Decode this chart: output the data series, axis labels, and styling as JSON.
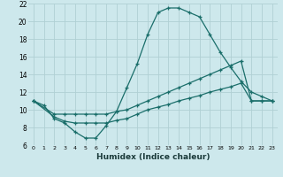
{
  "xlabel": "Humidex (Indice chaleur)",
  "background_color": "#cde8ec",
  "grid_color": "#b0d0d4",
  "line_color": "#1a6e6a",
  "xlim": [
    -0.5,
    23.5
  ],
  "ylim": [
    6,
    22
  ],
  "xticks": [
    0,
    1,
    2,
    3,
    4,
    5,
    6,
    7,
    8,
    9,
    10,
    11,
    12,
    13,
    14,
    15,
    16,
    17,
    18,
    19,
    20,
    21,
    22,
    23
  ],
  "yticks": [
    6,
    8,
    10,
    12,
    14,
    16,
    18,
    20,
    22
  ],
  "line1_x": [
    0,
    1,
    2,
    3,
    4,
    5,
    6,
    7,
    8,
    9,
    10,
    11,
    12,
    13,
    14,
    15,
    16,
    17,
    18,
    19,
    20,
    21,
    22,
    23
  ],
  "line1_y": [
    11.0,
    10.5,
    9.0,
    8.5,
    7.5,
    6.8,
    6.8,
    8.2,
    9.8,
    12.5,
    15.2,
    18.5,
    21.0,
    21.5,
    21.5,
    21.0,
    20.5,
    18.5,
    16.5,
    14.8,
    13.2,
    12.0,
    11.5,
    11.0
  ],
  "line2_x": [
    0,
    2,
    3,
    4,
    5,
    6,
    7,
    8,
    9,
    10,
    11,
    12,
    13,
    14,
    15,
    16,
    17,
    18,
    19,
    20,
    21,
    22,
    23
  ],
  "line2_y": [
    11.0,
    9.5,
    9.5,
    9.5,
    9.5,
    9.5,
    9.5,
    9.8,
    10.0,
    10.5,
    11.0,
    11.5,
    12.0,
    12.5,
    13.0,
    13.5,
    14.0,
    14.5,
    15.0,
    15.5,
    11.0,
    11.0,
    11.0
  ],
  "line3_x": [
    0,
    2,
    3,
    4,
    5,
    6,
    7,
    8,
    9,
    10,
    11,
    12,
    13,
    14,
    15,
    16,
    17,
    18,
    19,
    20,
    21,
    22,
    23
  ],
  "line3_y": [
    11.0,
    9.2,
    8.7,
    8.5,
    8.5,
    8.5,
    8.5,
    8.8,
    9.0,
    9.5,
    10.0,
    10.3,
    10.6,
    11.0,
    11.3,
    11.6,
    12.0,
    12.3,
    12.6,
    13.0,
    11.0,
    11.0,
    11.0
  ]
}
